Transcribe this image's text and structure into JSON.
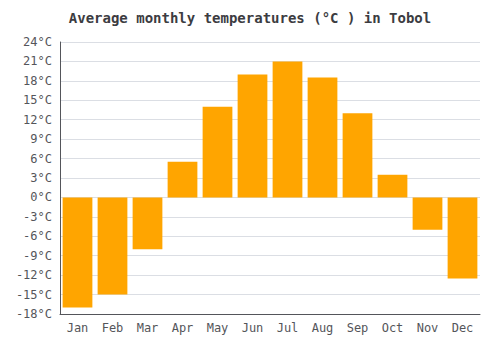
{
  "chart_data": {
    "type": "bar",
    "title": "Average monthly temperatures (°C ) in Tobol",
    "categories": [
      "Jan",
      "Feb",
      "Mar",
      "Apr",
      "May",
      "Jun",
      "Jul",
      "Aug",
      "Sep",
      "Oct",
      "Nov",
      "Dec"
    ],
    "values": [
      -17,
      -15,
      -8,
      5.5,
      14,
      19,
      21,
      18.5,
      13,
      3.5,
      -5,
      -12.5
    ],
    "color": "#FFA500",
    "ylim": [
      -18,
      24
    ],
    "yticks": [
      {
        "value": -18,
        "label": "-18°C"
      },
      {
        "value": -15,
        "label": "-15°C"
      },
      {
        "value": -12,
        "label": "-12°C"
      },
      {
        "value": -9,
        "label": "-9°C"
      },
      {
        "value": -6,
        "label": "-6°C"
      },
      {
        "value": -3,
        "label": "-3°C"
      },
      {
        "value": 0,
        "label": "0°C"
      },
      {
        "value": 3,
        "label": "3°C"
      },
      {
        "value": 6,
        "label": "6°C"
      },
      {
        "value": 9,
        "label": "9°C"
      },
      {
        "value": 12,
        "label": "12°C"
      },
      {
        "value": 15,
        "label": "15°C"
      },
      {
        "value": 18,
        "label": "18°C"
      },
      {
        "value": 21,
        "label": "21°C"
      },
      {
        "value": 24,
        "label": "24°C"
      }
    ],
    "grid": true
  }
}
